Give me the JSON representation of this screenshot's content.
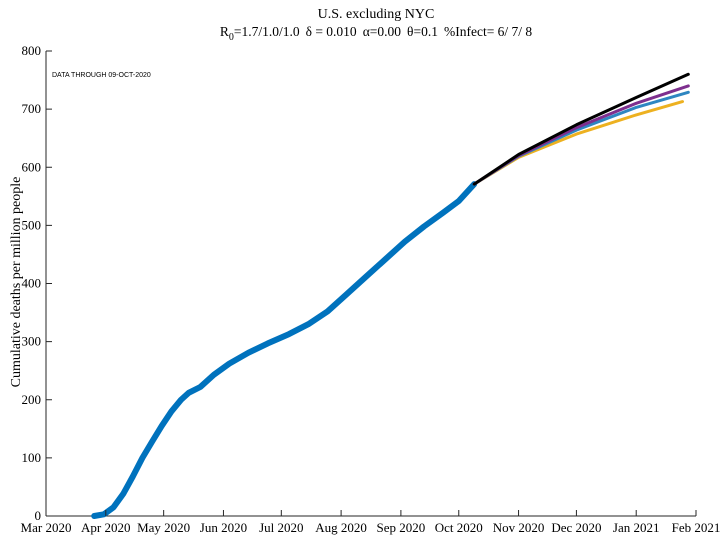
{
  "chart_data": {
    "type": "line",
    "title": "U.S. excluding NYC",
    "subtitle": {
      "r_label": "R",
      "r_sub": "0",
      "r_value": "=1.7/1.0/1.0",
      "delta": "δ = 0.010",
      "alpha": "α=0.00",
      "theta": "θ=0.1",
      "infect": "%Infect= 6/ 7/ 8"
    },
    "annotation": "DATA THROUGH 09-OCT-2020",
    "ylabel": "Cumulative deaths per million people",
    "xlabel": "",
    "ylim": [
      0,
      800
    ],
    "yticks": [
      "0",
      "100",
      "200",
      "300",
      "400",
      "500",
      "600",
      "700",
      "800"
    ],
    "xticks": [
      {
        "label": "Mar 2020",
        "date": "2020-03-01"
      },
      {
        "label": "Apr 2020",
        "date": "2020-04-01"
      },
      {
        "label": "May 2020",
        "date": "2020-05-01"
      },
      {
        "label": "Jun 2020",
        "date": "2020-06-01"
      },
      {
        "label": "Jul 2020",
        "date": "2020-07-01"
      },
      {
        "label": "Aug 2020",
        "date": "2020-08-01"
      },
      {
        "label": "Sep 2020",
        "date": "2020-09-01"
      },
      {
        "label": "Oct 2020",
        "date": "2020-10-01"
      },
      {
        "label": "Nov 2020",
        "date": "2020-11-01"
      },
      {
        "label": "Dec 2020",
        "date": "2020-12-01"
      },
      {
        "label": "Jan 2021",
        "date": "2021-01-01"
      },
      {
        "label": "Feb 2021",
        "date": "2021-02-01"
      }
    ],
    "xlim": [
      "2020-03-01",
      "2021-02-01"
    ],
    "grid": false,
    "series": [
      {
        "color": "#0072BD",
        "style": "thick",
        "points": [
          [
            "2020-03-26",
            0
          ],
          [
            "2020-03-31",
            3
          ],
          [
            "2020-04-05",
            15
          ],
          [
            "2020-04-10",
            38
          ],
          [
            "2020-04-15",
            68
          ],
          [
            "2020-04-20",
            100
          ],
          [
            "2020-04-25",
            128
          ],
          [
            "2020-04-30",
            155
          ],
          [
            "2020-05-05",
            180
          ],
          [
            "2020-05-10",
            200
          ],
          [
            "2020-05-14",
            212
          ],
          [
            "2020-05-20",
            222
          ],
          [
            "2020-05-27",
            243
          ],
          [
            "2020-06-04",
            262
          ],
          [
            "2020-06-14",
            281
          ],
          [
            "2020-06-24",
            297
          ],
          [
            "2020-07-05",
            313
          ],
          [
            "2020-07-15",
            330
          ],
          [
            "2020-07-25",
            352
          ],
          [
            "2020-08-04",
            382
          ],
          [
            "2020-08-14",
            412
          ],
          [
            "2020-08-24",
            442
          ],
          [
            "2020-09-03",
            472
          ],
          [
            "2020-09-13",
            498
          ],
          [
            "2020-09-23",
            522
          ],
          [
            "2020-10-01",
            542
          ],
          [
            "2020-10-09",
            571
          ]
        ]
      },
      {
        "color": "#EDB120",
        "style": "projection",
        "points": [
          [
            "2020-10-09",
            571
          ],
          [
            "2020-11-01",
            617
          ],
          [
            "2020-12-01",
            657
          ],
          [
            "2021-01-01",
            690
          ],
          [
            "2021-01-25",
            713
          ]
        ]
      },
      {
        "color": "#2E86C1",
        "style": "projection",
        "points": [
          [
            "2020-10-09",
            571
          ],
          [
            "2020-11-01",
            619
          ],
          [
            "2020-12-01",
            664
          ],
          [
            "2021-01-01",
            703
          ],
          [
            "2021-01-28",
            729
          ]
        ]
      },
      {
        "color": "#7E2F8E",
        "style": "projection",
        "points": [
          [
            "2020-10-09",
            571
          ],
          [
            "2020-11-01",
            620
          ],
          [
            "2020-12-01",
            668
          ],
          [
            "2021-01-01",
            710
          ],
          [
            "2021-01-28",
            740
          ]
        ]
      },
      {
        "color": "#000000",
        "style": "projection",
        "points": [
          [
            "2020-10-09",
            571
          ],
          [
            "2020-11-01",
            622
          ],
          [
            "2020-12-01",
            673
          ],
          [
            "2021-01-01",
            720
          ],
          [
            "2021-01-28",
            760
          ]
        ]
      }
    ]
  }
}
